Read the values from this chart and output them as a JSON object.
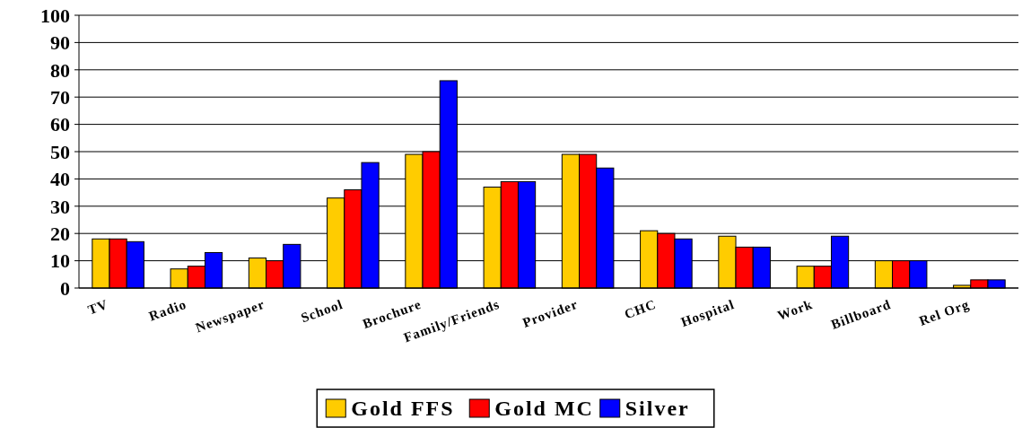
{
  "chart_data": {
    "type": "bar",
    "categories": [
      "TV",
      "Radio",
      "Newspaper",
      "School",
      "Brochure",
      "Family/Friends",
      "Provider",
      "CHC",
      "Hospital",
      "Work",
      "Billboard",
      "Rel Org"
    ],
    "series": [
      {
        "name": "Gold FFS",
        "color": "#ffcc00",
        "values": [
          18,
          7,
          11,
          33,
          49,
          37,
          49,
          21,
          19,
          8,
          10,
          1
        ]
      },
      {
        "name": "Gold MC",
        "color": "#ff0000",
        "values": [
          18,
          8,
          10,
          36,
          50,
          39,
          49,
          20,
          15,
          8,
          10,
          3
        ]
      },
      {
        "name": "Silver",
        "color": "#0000ff",
        "values": [
          17,
          13,
          16,
          46,
          76,
          39,
          44,
          18,
          15,
          19,
          10,
          3
        ]
      }
    ],
    "ylim": [
      0,
      100
    ],
    "yticks": [
      0,
      10,
      20,
      30,
      40,
      50,
      60,
      70,
      80,
      90,
      100
    ],
    "grid": "y",
    "legend": "bottom"
  }
}
